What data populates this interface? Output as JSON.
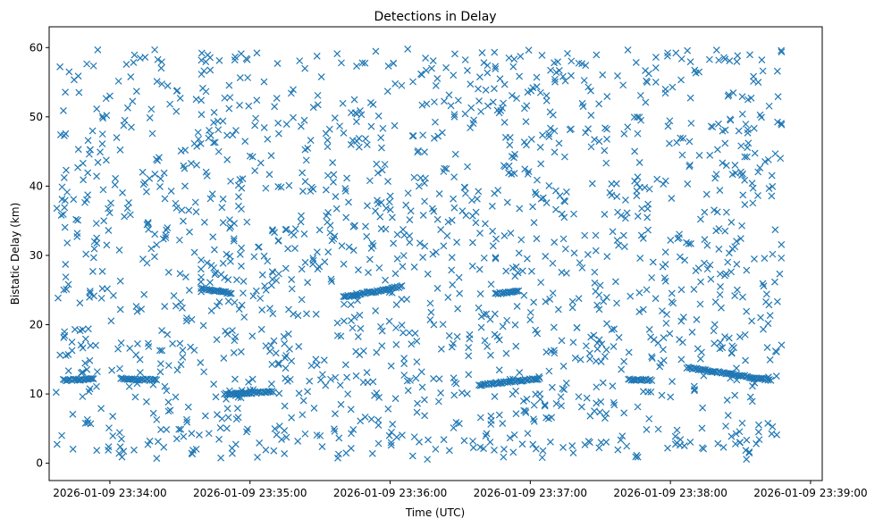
{
  "chart_data": {
    "type": "scatter",
    "title": "Detections in Delay",
    "xlabel": "Time (UTC)",
    "ylabel": "Bistatic Delay (km)",
    "marker": "x",
    "color": "#1f77b4",
    "grid": false,
    "xlim": [
      "2026-01-09 23:33:34",
      "2026-01-09 23:39:05"
    ],
    "ylim": [
      -2.5,
      63
    ],
    "x_ticks": [
      "2026-01-09 23:34:00",
      "2026-01-09 23:35:00",
      "2026-01-09 23:36:00",
      "2026-01-09 23:37:00",
      "2026-01-09 23:38:00",
      "2026-01-09 23:39:00"
    ],
    "y_ticks": [
      0,
      10,
      20,
      30,
      40,
      50,
      60
    ],
    "data_range": {
      "x": [
        "2026-01-09 23:33:37",
        "2026-01-09 23:38:48"
      ],
      "y": [
        0.5,
        59.8
      ]
    },
    "tracks": [
      {
        "x": [
          "2026-01-09 23:33:40",
          "2026-01-09 23:33:53"
        ],
        "y": [
          12.0,
          12.2
        ]
      },
      {
        "x": [
          "2026-01-09 23:34:05",
          "2026-01-09 23:34:20"
        ],
        "y": [
          12.2,
          12.0
        ]
      },
      {
        "x": [
          "2026-01-09 23:34:49",
          "2026-01-09 23:35:10"
        ],
        "y": [
          10.0,
          10.3
        ]
      },
      {
        "x": [
          "2026-01-09 23:34:39",
          "2026-01-09 23:34:52"
        ],
        "y": [
          25.2,
          24.5
        ]
      },
      {
        "x": [
          "2026-01-09 23:36:38",
          "2026-01-09 23:37:04"
        ],
        "y": [
          11.3,
          12.2
        ]
      },
      {
        "x": [
          "2026-01-09 23:38:07",
          "2026-01-09 23:38:43"
        ],
        "y": [
          13.8,
          12.0
        ]
      },
      {
        "x": [
          "2026-01-09 23:37:42",
          "2026-01-09 23:37:52"
        ],
        "y": [
          12.1,
          12.0
        ]
      },
      {
        "x": [
          "2026-01-09 23:35:40",
          "2026-01-09 23:36:05"
        ],
        "y": [
          24.0,
          25.5
        ]
      },
      {
        "x": [
          "2026-01-09 23:36:45",
          "2026-01-09 23:36:55"
        ],
        "y": [
          24.5,
          24.8
        ]
      }
    ],
    "random_detections": {
      "count": 1650,
      "seed": 20260109
    }
  }
}
